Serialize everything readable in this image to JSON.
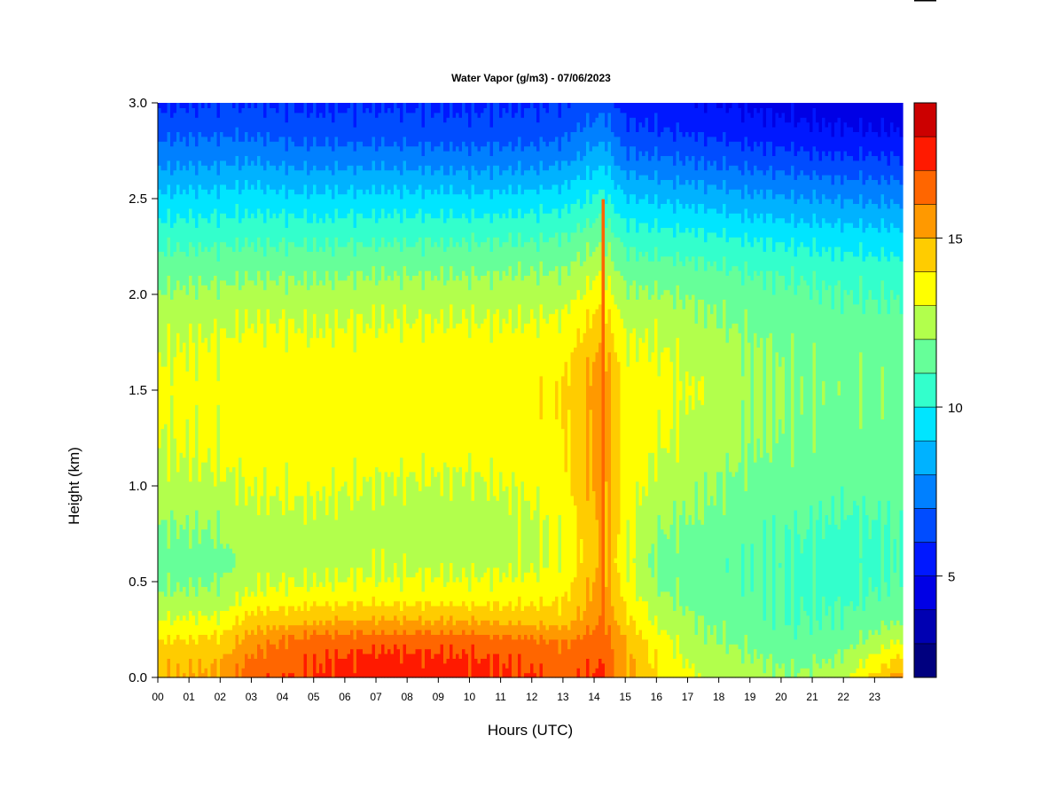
{
  "chart_data": {
    "type": "heatmap",
    "title": "Water Vapor (g/m3) - 07/06/2023",
    "xlabel": "Hours (UTC)",
    "ylabel": "Height (km)",
    "x_ticks": [
      "00",
      "01",
      "02",
      "03",
      "04",
      "05",
      "06",
      "07",
      "08",
      "09",
      "10",
      "11",
      "12",
      "13",
      "14",
      "15",
      "16",
      "17",
      "18",
      "19",
      "20",
      "21",
      "22",
      "23"
    ],
    "y_ticks": [
      "0.0",
      "0.5",
      "1.0",
      "1.5",
      "2.0",
      "2.5",
      "3.0"
    ],
    "xlim": [
      0,
      23.9
    ],
    "ylim": [
      0,
      3.0
    ],
    "colorbar": {
      "range": [
        2,
        19
      ],
      "ticks": [
        "5",
        "10",
        "15"
      ],
      "tick_values": [
        5,
        10,
        15
      ],
      "levels": [
        2,
        3,
        4,
        5,
        6,
        7,
        8,
        9,
        10,
        11,
        12,
        13,
        14,
        15,
        16,
        17,
        18,
        19
      ],
      "colors": [
        "#00007F",
        "#0000B2",
        "#0000E5",
        "#0018FF",
        "#004CFF",
        "#0080FF",
        "#00B2FF",
        "#00E5FF",
        "#33FFCC",
        "#66FF99",
        "#B2FF4C",
        "#FFFF00",
        "#FFCC00",
        "#FF9900",
        "#FF6600",
        "#FF1A00",
        "#CC0000",
        "#8B0000"
      ]
    },
    "profile_key_hours": [
      0,
      2,
      3,
      5,
      7,
      10,
      12,
      13,
      14.3,
      15,
      16,
      17.5,
      19,
      20.5,
      22,
      23.9
    ],
    "profile_heights_km": [
      0,
      0.1,
      0.2,
      0.3,
      0.45,
      0.6,
      0.8,
      1.0,
      1.2,
      1.5,
      1.7,
      1.9,
      2.1,
      2.3,
      2.5,
      2.7,
      2.85,
      3.0
    ],
    "profiles_gm3": [
      [
        15,
        14.6,
        14,
        13,
        12,
        11.4,
        12,
        12.6,
        13,
        13.2,
        13,
        12.5,
        11.7,
        10.6,
        9.3,
        7.7,
        6.7,
        5.8
      ],
      [
        15.2,
        14.8,
        14.2,
        13.2,
        12.1,
        11.6,
        12.1,
        12.8,
        13.2,
        13.4,
        13.2,
        12.7,
        11.8,
        10.7,
        9.4,
        7.8,
        6.8,
        6.0
      ],
      [
        16.7,
        16.2,
        15.5,
        14.4,
        13,
        12.6,
        12.6,
        13.1,
        13.4,
        13.6,
        13.4,
        12.9,
        11.9,
        10.8,
        9.5,
        7.9,
        6.8,
        6.0
      ],
      [
        17.1,
        16.9,
        16.4,
        14.8,
        13.2,
        12.6,
        12.7,
        13.2,
        13.5,
        13.5,
        13.3,
        12.8,
        11.9,
        10.7,
        9.3,
        7.6,
        6.5,
        5.8
      ],
      [
        17.6,
        17.3,
        16.6,
        15,
        13.3,
        12.8,
        12.6,
        12.9,
        13.5,
        13.6,
        13.4,
        12.9,
        12,
        10.8,
        9.4,
        7.7,
        6.5,
        5.9
      ],
      [
        17.3,
        17.1,
        16.5,
        14.9,
        13.3,
        12.7,
        12.5,
        12.8,
        13.4,
        13.6,
        13.5,
        12.9,
        12,
        10.8,
        9.3,
        7.5,
        6.4,
        5.8
      ],
      [
        17.1,
        16.7,
        16.2,
        14.6,
        13.4,
        12.8,
        12.8,
        13.2,
        13.5,
        13.7,
        13.5,
        12.9,
        12.1,
        10.9,
        9.4,
        7.6,
        6.5,
        5.9
      ],
      [
        16.8,
        16.4,
        15.8,
        14.5,
        13.7,
        13.2,
        13.3,
        13.6,
        13.8,
        14,
        13.6,
        13.0,
        12.1,
        11,
        9.6,
        7.8,
        6.7,
        6.0
      ],
      [
        17.2,
        16.9,
        16.6,
        16.1,
        15.6,
        15.3,
        15.3,
        15.5,
        15.7,
        15.8,
        15.3,
        14.3,
        13.1,
        11.8,
        10.3,
        8.8,
        7.6,
        6.6
      ],
      [
        15.3,
        15.2,
        14.9,
        14.3,
        13.6,
        13.2,
        13.4,
        13.6,
        13.6,
        13.5,
        13.2,
        12.6,
        11.7,
        10.6,
        9.1,
        7.4,
        6.3,
        5.5
      ],
      [
        14.1,
        13.8,
        13.4,
        12.8,
        12.1,
        11.8,
        12.1,
        12.6,
        13.1,
        13.3,
        13.1,
        12.6,
        11.6,
        10.4,
        8.9,
        7.2,
        6.1,
        5.4
      ],
      [
        12.8,
        12.5,
        12.2,
        11.9,
        11.4,
        11.3,
        11.8,
        12.2,
        12.5,
        12.9,
        12.6,
        12.1,
        11.4,
        10.2,
        8.6,
        6.9,
        5.8,
        5.1
      ],
      [
        12.5,
        12.1,
        11.7,
        11.4,
        11.2,
        11.1,
        11.3,
        11.7,
        12.0,
        12.2,
        12.1,
        11.7,
        11.1,
        9.9,
        8.3,
        6.6,
        5.5,
        4.8
      ],
      [
        12.1,
        11.6,
        11.2,
        11.0,
        10.9,
        10.9,
        11.1,
        11.5,
        11.8,
        12.0,
        11.8,
        11.5,
        10.9,
        9.7,
        8.1,
        6.4,
        5.3,
        4.6
      ],
      [
        12.8,
        12.1,
        11.5,
        11.1,
        10.7,
        10.5,
        10.8,
        11.3,
        11.6,
        11.8,
        11.7,
        11.3,
        10.7,
        9.5,
        7.9,
        6.2,
        5.1,
        4.4
      ],
      [
        15.6,
        14.3,
        13.0,
        12.0,
        11.3,
        11.0,
        11.1,
        11.4,
        11.6,
        11.8,
        11.6,
        11.2,
        10.6,
        9.4,
        7.8,
        6.1,
        5.0,
        4.3
      ]
    ],
    "annotations": [
      {
        "label": "",
        "x": 14.3,
        "y_min": 0.08,
        "y_max": 2.5,
        "value": 16.3
      }
    ]
  }
}
